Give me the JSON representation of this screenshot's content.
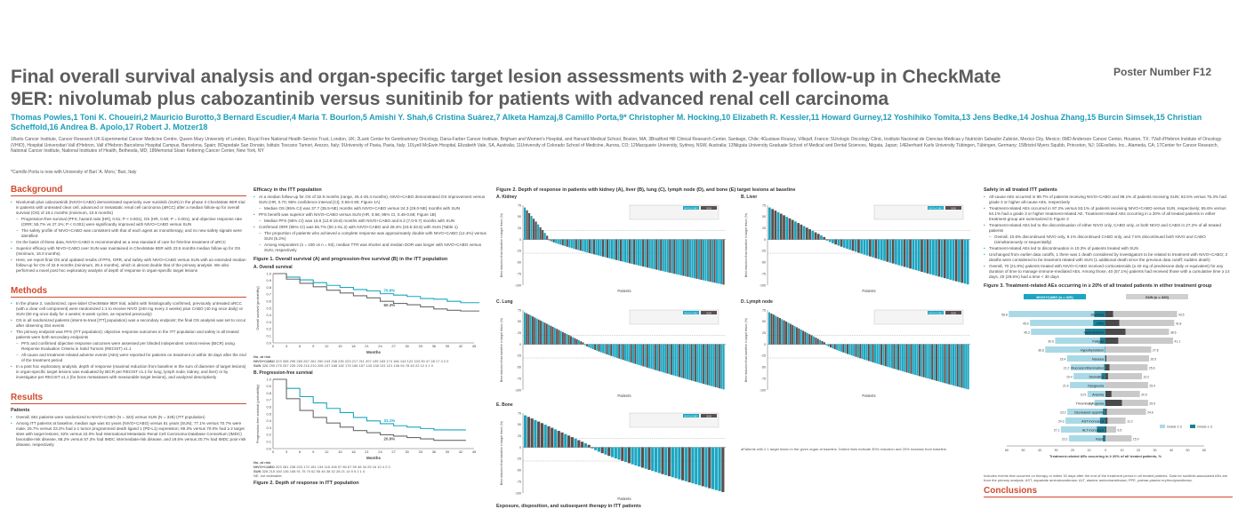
{
  "header": {
    "title": "Final overall survival analysis and organ-specific target lesion assessments with 2-year follow-up in CheckMate 9ER: nivolumab plus cabozantinib versus sunitinib for patients with advanced renal cell carcinoma",
    "poster_number": "Poster Number F12",
    "authors": "Thomas Powles,1 Toni K. Choueiri,2 Mauricio Burotto,3 Bernard Escudier,4 Maria T. Bourlon,5 Amishi Y. Shah,6 Cristina Suárez,7 Alketa Hamzaj,8 Camillo Porta,9* Christopher M. Hocking,10 Elizabeth R. Kessler,11 Howard Gurney,12 Yoshihiko Tomita,13 Jens Bedke,14 Joshua Zhang,15 Burcin Simsek,15 Christian Scheffold,16 Andrea B. Apolo,17 Robert J. Motzer18",
    "affiliations": "1Barts Cancer Institute, Cancer Research UK Experimental Cancer Medicine Centre, Queen Mary University of London, Royal Free National Health Service Trust, London, UK; 2Lank Center for Genitourinary Oncology, Dana-Farber Cancer Institute, Brigham and Women's Hospital, and Harvard Medical School, Boston, MA; 3Bradford Hill Clinical Research Center, Santiago, Chile; 4Gustave Roussy, Villejuif, France; 5Urologic Oncology Clinic, Instituto Nacional de Ciencias Médicas y Nutrición Salvador Zubirán, Mexico City, Mexico; 6MD Anderson Cancer Center, Houston, TX; 7Vall d'Hebron Institute of Oncology (VHIO), Hospital Universitari Vall d'Hebron, Vall d'Hebron Barcelona Hospital Campus, Barcelona, Spain; 8Ospedale San Donato, Istituto Toscano Tumori, Arezzo, Italy; 9University of Pavia, Pavia, Italy; 10Lyell McEwin Hospital, Elizabeth Vale, SA, Australia; 11University of Colorado School of Medicine, Aurora, CO; 12Macquarie University, Sydney, NSW, Australia; 13Niigata University Graduate School of Medical and Dental Sciences, Niigata, Japan; 14Eberhard Karls University Tübingen, Tübingen, Germany; 15Bristol Myers Squibb, Princeton, NJ; 16Exelixis, Inc., Alameda, CA; 17Center for Cancer Research, National Cancer Institute, National Institutes of Health, Bethesda, MD; 18Memorial Sloan Kettering Cancer Center, New York, NY",
    "note": "*Camillo Porta is now with University of Bari 'A. Moro,' Bari, Italy"
  },
  "background": {
    "heading": "Background",
    "items": [
      "Nivolumab plus cabozantinib (NIVO+CABO) demonstrated superiority over sunitinib (SUN) in the phase 3 CheckMate 9ER trial in patients with untreated clear cell, advanced or metastatic renal cell carcinoma (aRCC) after a median follow-up for overall survival (OS) of 18.1 months (minimum, 10.6 months)",
      "Progression-free survival (PFS; hazard ratio [HR], 0.51; P < 0.001), OS (HR, 0.60; P = 0.001), and objective response rate (ORR; 55.7% vs 27.1%; P < 0.001) were significantly improved with NIVO+CABO versus SUN",
      "The safety profile of NIVO+CABO was consistent with that of each agent as monotherapy, and no new safety signals were identified",
      "On the basis of these data, NIVO+CABO is recommended as a new standard of care for first-line treatment of aRCC",
      "Superior efficacy with NIVO+CABO over SUN was maintained in CheckMate 9ER with 23.5 months median follow-up for OS (minimum, 16.0 months)",
      "Here, we report final OS and updated results of PFS, ORR, and safety with NIVO+CABO versus SUN with an extended median follow-up for OS of 32.9 months (minimum, 25.4 months), which is almost double that of the primary analysis. We also performed a novel post hoc exploratory analysis of depth of response in organ-specific target lesions"
    ]
  },
  "methods": {
    "heading": "Methods",
    "items": [
      "In the phase 3, randomized, open-label CheckMate 9ER trial, adults with histologically confirmed, previously untreated aRCC (with a clear cell component) were randomized 1:1 to receive NIVO (240 mg every 2 weeks) plus CABO (40 mg once daily) or SUN (50 mg once daily for 4 weeks; 6-week cycles, as reported previously)",
      "OS in all randomized patients (intent-to-treat [ITT] population) was a secondary endpoint; the final OS analysis was set to occur after observing 254 events",
      "The primary endpoint was PFS (ITT population); objective response outcomes in the ITT population and safety in all treated patients were both secondary endpoints",
      "PFS and confirmed objective response outcomes were assessed per blinded independent central review (BICR) using Response Evaluation Criteria in Solid Tumors (RECIST) v1.1",
      "All-cause and treatment-related adverse events (AEs) were reported for patients on treatment or within 30 days after the end of the treatment period",
      "In a post hoc exploratory analysis, depth of response (maximal reduction from baseline in the sum of diameter of target lesions) in organ-specific target lesions was evaluated by BICR per RECIST v1.1 for lung, lymph node, kidney, and liver) or by investigator per RECIST v1.1 (for bone metastases with measurable target lesions), and analyzed descriptively"
    ]
  },
  "results": {
    "heading": "Results",
    "sub": "Patients",
    "items": [
      "Overall, 651 patients were randomized to NIVO+CABO (N = 323) versus SUN (N = 328) (ITT population)",
      "Among ITT patients at baseline, median age was 62 years (NIVO+CABO) versus 61 years (SUN); 77.1% versus 70.7% were male; 25.7% versus 23.2% had ≥ 1 tumor programmed death ligand 1 (PD-L1) expression; 69.3% versus 70.0% had ≥ 2 target sites with target lesions; 32% versus 22.0% had International Metastatic Renal Cell Carcinoma Database Consortium (IMDC) favorable-risk disease, 58.2% versus 57.3% had IMDC intermediate-risk disease, and 19.5% versus 20.7% had IMDC poor-risk disease, respectively"
    ]
  },
  "efficacy": {
    "heading": "Efficacy in the ITT population",
    "items": [
      "At a median follow-up for OS of 32.9 months (range, 25.4-45.4 months), NIVO+CABO demonstrated OS improvement versus SUN (HR, 0.70; 95% confidence interval [CI], 0.55-0.90; Figure 1A)",
      "Median OS (95% CI) was 37.7 (35.5-NE) months with NIVO+CABO versus 34.3 (29.0-NE) months with SUN",
      "PFS benefit was superior with NIVO+CABO versus SUN (HR, 0.56; 95% CI, 0.46-0.68; Figure 1B)",
      "Median PFS (95% CI) was 16.6 (12.8-19.8) months with NIVO+CABO and 8.3 (7.0-9.7) months with SUN",
      "Confirmed ORR (95% CI) was 55.7% (50.1-61.2) with NIVO+CABO and 28.4% (23.5-33.6) with SUN (Table 1)",
      "The proportion of patients who achieved a complete response was approximately double with NIVO+CABO (12.4%) versus SUN (5.2%)",
      "Among responders (n = 180 vs n = 93), median TTR was shorter and median DOR was longer with NIVO+CABO versus SUN, respectively"
    ],
    "fig1_title": "Figure 1. Overall survival (A) and progression-free survival (B) in the ITT population",
    "fig1a_label": "A. Overall survival",
    "fig1b_label": "B. Progression-free survival",
    "fig1a_ylabel": "Overall survival (probability)",
    "fig1b_ylabel": "Progression-free survival (probability)",
    "xlabel": "Months",
    "fig1a_pct1": "70.6%",
    "fig1a_pct2": "60.3%",
    "fig1b_pct1": "31.1%",
    "fig1b_pct2": "20.9%",
    "at_risk": "No. at risk",
    "row_nivo": "NIVO+CABO",
    "row_sun": "SUN",
    "os_nivo": "323 308 295 283 267 261 250 243 238 230 223 217 211 207 199 183 174 166 144 122 103 90 47 28 17 3 2 0",
    "os_sun": "328 299 275 257 239 226 216 210 205 197 188 182 175 166 157 143 138 131 121 106 94 78 40 22 12 4 1 0",
    "pfs_nivo": "323 281 238 203 170 151 134 118 106 97 80 67 59 48 34 25 16 10 4 2 0",
    "pfs_sun": "328 215 160 136 108 91 75 70 62 55 46 38 32 28 21 14 9 5 2 1 0",
    "fig1_footnote": "NE, not estimable.",
    "fig2_caption": "Figure 2. Depth of response in ITT population",
    "exposure_heading": "Exposure, disposition, and subsequent therapy in ITT patients"
  },
  "waterfall": {
    "title": "Figure 2. Depth of response in patients with kidney (A), liver (B), lung (C), lymph node (D), and bone (E) target lesions at baseline",
    "ylabel": "Best reduction from baseline in target lesion (%)",
    "xlabel": "Patients",
    "legend_nivo": "NIVO+CABO",
    "legend_sun": "SUN",
    "panels": [
      {
        "label": "A. Kidney"
      },
      {
        "label": "B. Liver"
      },
      {
        "label": "C. Lung"
      },
      {
        "label": "D. Lymph node"
      },
      {
        "label": "E. Bone"
      }
    ],
    "footnotes": "aPatients with ≥ 1 target lesion in the given organ at baseline. Dotted lines indicate 30% reduction and 20% increase from baseline.",
    "ticks": [
      "75",
      "50",
      "25",
      "0",
      "-25",
      "-50",
      "-75",
      "-100"
    ]
  },
  "safety": {
    "heading": "Safety in all treated ITT patients",
    "items": [
      "All-cause AEs occurred in 99.7% of patients receiving NIVO+CABO and 99.1% of patients receiving SUN; 82.5% versus 75.3% had grade 3 or higher all-cause AEs, respectively",
      "Treatment-related AEs occurred in 97.2% versus 93.1% of patients receiving NIVO+CABO versus SUN, respectively; 65.6% versus 54.1% had a grade 3 or higher treatment-related AE. Treatment-related AEs occurring in ≥ 20% of all treated patients in either treatment group are summarized in Figure 3",
      "Treatment-related AEs led to the discontinuation of either NIVO only, CABO only, or both NIVO and CABO in 27.2% of all treated patients",
      "Overall, 10.6% discontinued NIVO only, 9.1% discontinued CABO only, and 7.5% discontinued both NIVO and CABO (simultaneously or sequentially)",
      "Treatment-related AEs led to discontinuation in 10.3% of patients treated with SUN",
      "Unchanged from earlier data cutoffs, 1 there was 1 death considered by investigators to be related to treatment with NIVO+CABO; 2 deaths were considered to be treatment related with SUN (1 additional death since the previous data cutoff; sudden death)",
      "Overall, 70 (21.9%) patients treated with NIVO+CABO received corticosteroids (≥ 40 mg of prednisone daily or equivalent) for any duration of time to manage immune-mediated AEs. Among those, 40 (57.1%) patients had received those with a cumulative time ≥ 14 days, 20 (28.6%) had a time < 30 days"
    ],
    "fig3_title": "Figure 3. Treatment-related AEs occurring in ≥ 20% of all treated patients in either treatment group",
    "fig3_xlabel": "Treatment-related AEs occurring in ≥ 20% of all treated patients, %",
    "legend_nivo": "NIVO+CABO (n = 320)",
    "legend_sun": "SUN (n = 320)",
    "legend_g12": "Grade 1-2",
    "legend_g3": "Grade ≥ 3",
    "fig3_footnote": "Includes events that occurred on therapy or within 30 days after the end of the treatment period in all treated patients. Data for sunitinib-associated AEs are from the primary analysis. AST, aspartate aminotransferase; ALT, alanine aminotransferase; PPE, palmar-plantar erythrodysesthesia.",
    "conclusions_heading": "Conclusions",
    "xticks": [
      "60",
      "50",
      "40",
      "30",
      "20",
      "10",
      "0",
      "10",
      "20",
      "30",
      "40",
      "50",
      "60"
    ]
  },
  "chart_data": [
    {
      "type": "line",
      "title": "A. Overall survival",
      "xlabel": "Months",
      "ylabel": "Overall survival (probability)",
      "xlim": [
        0,
        45
      ],
      "ylim": [
        0,
        1.0
      ],
      "x": [
        0,
        3,
        6,
        9,
        12,
        15,
        18,
        21,
        24,
        27,
        30,
        33,
        36,
        39,
        42,
        45
      ],
      "series": [
        {
          "name": "NIVO+CABO",
          "values": [
            1.0,
            0.95,
            0.91,
            0.87,
            0.83,
            0.8,
            0.77,
            0.75,
            0.71,
            0.69,
            0.67,
            0.64,
            0.63,
            0.6,
            0.58,
            0.58
          ]
        },
        {
          "name": "SUN",
          "values": [
            1.0,
            0.92,
            0.86,
            0.81,
            0.76,
            0.72,
            0.68,
            0.65,
            0.6,
            0.57,
            0.55,
            0.52,
            0.49,
            0.47,
            0.46,
            0.46
          ]
        }
      ]
    },
    {
      "type": "line",
      "title": "B. Progression-free survival",
      "xlabel": "Months",
      "ylabel": "Progression-free survival (probability)",
      "xlim": [
        0,
        45
      ],
      "ylim": [
        0,
        1.0
      ],
      "x": [
        0,
        3,
        6,
        9,
        12,
        15,
        18,
        21,
        24,
        27,
        30,
        33,
        36,
        39,
        42
      ],
      "series": [
        {
          "name": "NIVO+CABO",
          "values": [
            1.0,
            0.87,
            0.75,
            0.66,
            0.58,
            0.52,
            0.45,
            0.4,
            0.36,
            0.33,
            0.31,
            0.29,
            0.27,
            0.27,
            0.27
          ]
        },
        {
          "name": "SUN",
          "values": [
            1.0,
            0.72,
            0.55,
            0.45,
            0.37,
            0.31,
            0.26,
            0.23,
            0.2,
            0.18,
            0.16,
            0.14,
            0.12,
            0.12,
            0.12
          ]
        }
      ]
    },
    {
      "type": "bar",
      "title": "Figure 3. Treatment-related AEs occurring in ≥ 20% of all treated patients in either treatment group",
      "categories": [
        "Diarrhea",
        "PPE",
        "Hypertension",
        "Fatigue",
        "Hypothyroidism",
        "Nausea",
        "Mucosal inflammation",
        "Stomatitis",
        "Dysgeusia",
        "Anemia",
        "Thrombocytopenia",
        "Decreased appetite",
        "AST increased",
        "ALT increased",
        "Rash"
      ],
      "series": [
        {
          "name": "NIVO+CABO Grade 1-2",
          "values": [
            51.9,
            38.4,
            32.8,
            27.2,
            36.3,
            23.1,
            20.3,
            16.9,
            21.6,
            10.9,
            6.4,
            21.6,
            20.9,
            21.8,
            20.6
          ]
        },
        {
          "name": "NIVO+CABO Grade ≥ 3",
          "values": [
            6.9,
            7.5,
            12.5,
            3.4,
            0.3,
            0.3,
            0.9,
            2.5,
            0,
            0,
            0.3,
            1.6,
            3.4,
            5.3,
            1.6
          ]
        },
        {
          "name": "SUN Grade 1-2",
          "values": [
            38.8,
            33.4,
            26.4,
            33.3,
            27.8,
            25.9,
            23.1,
            20.6,
            25.9,
            17.2,
            15.9,
            23.7,
            10.9,
            5.9,
            15.9
          ]
        },
        {
          "name": "SUN Grade ≥ 3",
          "values": [
            4.7,
            8.4,
            12.2,
            7.8,
            0,
            0.6,
            2.5,
            1.6,
            0,
            3.7,
            10,
            0.9,
            1.3,
            0.6,
            0
          ]
        }
      ]
    }
  ]
}
